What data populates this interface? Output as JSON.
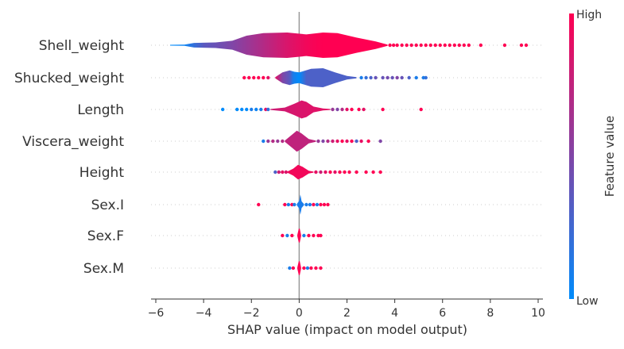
{
  "chart_data": {
    "type": "violin",
    "xlabel": "SHAP value (impact on model output)",
    "xlim": [
      -6.2,
      10.2
    ],
    "xticks": [
      -6,
      -4,
      -2,
      0,
      2,
      4,
      6,
      8,
      10
    ],
    "grid": false,
    "colorbar": {
      "label": "Feature value",
      "high_label": "High",
      "low_label": "Low",
      "low_color": "#008bfb",
      "high_color": "#ff0052"
    },
    "features": [
      {
        "name": "Shell_weight",
        "density": [
          [
            -5.4,
            0.03
          ],
          [
            -4.8,
            0.05
          ],
          [
            -4.4,
            0.18
          ],
          [
            -3.5,
            0.22
          ],
          [
            -2.8,
            0.35
          ],
          [
            -2.2,
            0.75
          ],
          [
            -1.5,
            0.95
          ],
          [
            -0.5,
            1.0
          ],
          [
            0.3,
            0.85
          ],
          [
            1.0,
            1.0
          ],
          [
            1.6,
            0.95
          ],
          [
            2.4,
            0.6
          ],
          [
            3.2,
            0.3
          ],
          [
            3.7,
            0.05
          ]
        ],
        "colors": [
          [
            -5.4,
            0.0
          ],
          [
            -4.8,
            0.05
          ],
          [
            -4.0,
            0.35
          ],
          [
            -2.8,
            0.5
          ],
          [
            -1.5,
            0.7
          ],
          [
            -0.5,
            0.85
          ],
          [
            0.3,
            0.95
          ],
          [
            1.0,
            1.0
          ],
          [
            3.7,
            1.0
          ]
        ],
        "points": [
          [
            3.8,
            1
          ],
          [
            3.95,
            1
          ],
          [
            4.1,
            1
          ],
          [
            4.3,
            1
          ],
          [
            4.5,
            1
          ],
          [
            4.7,
            1
          ],
          [
            4.9,
            1
          ],
          [
            5.1,
            1
          ],
          [
            5.3,
            1
          ],
          [
            5.5,
            1
          ],
          [
            5.7,
            1
          ],
          [
            5.9,
            1
          ],
          [
            6.1,
            1
          ],
          [
            6.3,
            1
          ],
          [
            6.5,
            1
          ],
          [
            6.7,
            1
          ],
          [
            6.9,
            1
          ],
          [
            7.1,
            1
          ],
          [
            7.6,
            1
          ],
          [
            8.6,
            1
          ],
          [
            9.3,
            1
          ],
          [
            9.5,
            1
          ]
        ]
      },
      {
        "name": "Shucked_weight",
        "density": [
          [
            -1.0,
            0.05
          ],
          [
            -0.7,
            0.45
          ],
          [
            -0.4,
            0.62
          ],
          [
            -0.2,
            0.5
          ],
          [
            0.0,
            0.45
          ],
          [
            0.5,
            0.75
          ],
          [
            1.0,
            0.8
          ],
          [
            1.5,
            0.45
          ],
          [
            2.0,
            0.15
          ],
          [
            2.4,
            0.05
          ]
        ],
        "colors": [
          [
            -1.0,
            0.9
          ],
          [
            -0.7,
            0.5
          ],
          [
            -0.4,
            0.35
          ],
          [
            -0.25,
            0.1
          ],
          [
            0.0,
            0.0
          ],
          [
            0.3,
            0.3
          ],
          [
            2.4,
            0.3
          ]
        ],
        "points": [
          [
            -2.3,
            1
          ],
          [
            -2.1,
            1
          ],
          [
            -1.9,
            1
          ],
          [
            -1.7,
            1
          ],
          [
            -1.5,
            1
          ],
          [
            -1.3,
            0.9
          ],
          [
            2.6,
            0.1
          ],
          [
            2.8,
            0.2
          ],
          [
            3.0,
            0.3
          ],
          [
            3.2,
            0.4
          ],
          [
            3.5,
            0.4
          ],
          [
            3.7,
            0.45
          ],
          [
            3.9,
            0.4
          ],
          [
            4.1,
            0.5
          ],
          [
            4.3,
            0.4
          ],
          [
            4.6,
            0.3
          ],
          [
            4.9,
            0.1
          ],
          [
            5.2,
            0.1
          ],
          [
            5.3,
            0.2
          ]
        ]
      },
      {
        "name": "Length",
        "density": [
          [
            -1.2,
            0.05
          ],
          [
            -0.6,
            0.2
          ],
          [
            -0.2,
            0.6
          ],
          [
            0.1,
            0.95
          ],
          [
            0.3,
            0.8
          ],
          [
            0.6,
            0.3
          ],
          [
            1.0,
            0.1
          ],
          [
            1.3,
            0.05
          ]
        ],
        "colors": [
          [
            -1.2,
            0.8
          ],
          [
            1.3,
            0.9
          ]
        ],
        "points": [
          [
            -3.2,
            0
          ],
          [
            -2.6,
            0
          ],
          [
            -2.4,
            0
          ],
          [
            -2.2,
            0
          ],
          [
            -2.0,
            0.1
          ],
          [
            -1.8,
            0.05
          ],
          [
            -1.6,
            0.1
          ],
          [
            -1.4,
            0.9
          ],
          [
            -1.3,
            0.2
          ],
          [
            1.4,
            0.6
          ],
          [
            1.6,
            0.5
          ],
          [
            1.8,
            0.7
          ],
          [
            2.0,
            0.9
          ],
          [
            2.2,
            1
          ],
          [
            2.5,
            1
          ],
          [
            2.7,
            0.9
          ],
          [
            3.5,
            1
          ],
          [
            5.1,
            1
          ]
        ]
      },
      {
        "name": "Viscera_weight",
        "density": [
          [
            -0.6,
            0.05
          ],
          [
            -0.35,
            0.5
          ],
          [
            -0.1,
            0.95
          ],
          [
            0.1,
            0.7
          ],
          [
            0.4,
            0.2
          ],
          [
            0.7,
            0.05
          ]
        ],
        "colors": [
          [
            -0.6,
            0.75
          ],
          [
            0.7,
            0.75
          ]
        ],
        "points": [
          [
            -1.5,
            0.1
          ],
          [
            -1.3,
            0.6
          ],
          [
            -1.1,
            0.7
          ],
          [
            -0.9,
            0.6
          ],
          [
            -0.7,
            0.7
          ],
          [
            0.8,
            0.6
          ],
          [
            1.0,
            0.5
          ],
          [
            1.2,
            0.7
          ],
          [
            1.4,
            0.8
          ],
          [
            1.6,
            0.9
          ],
          [
            1.8,
            1
          ],
          [
            2.0,
            0.9
          ],
          [
            2.2,
            1
          ],
          [
            2.4,
            0.3
          ],
          [
            2.6,
            0.9
          ],
          [
            2.9,
            1
          ],
          [
            3.4,
            0.5
          ]
        ]
      },
      {
        "name": "Height",
        "density": [
          [
            -0.5,
            0.05
          ],
          [
            -0.25,
            0.4
          ],
          [
            -0.05,
            0.85
          ],
          [
            0.15,
            0.6
          ],
          [
            0.4,
            0.15
          ],
          [
            0.6,
            0.05
          ]
        ],
        "colors": [
          [
            -0.5,
            0.95
          ],
          [
            0.6,
            0.95
          ]
        ],
        "points": [
          [
            -1.0,
            0.3
          ],
          [
            -0.85,
            0.8
          ],
          [
            -0.7,
            0.9
          ],
          [
            -0.55,
            0.85
          ],
          [
            0.7,
            0.9
          ],
          [
            0.9,
            0.8
          ],
          [
            1.1,
            0.9
          ],
          [
            1.3,
            1
          ],
          [
            1.5,
            0.9
          ],
          [
            1.7,
            1
          ],
          [
            1.9,
            1
          ],
          [
            2.1,
            1
          ],
          [
            2.4,
            1
          ],
          [
            2.8,
            1
          ],
          [
            3.1,
            1
          ],
          [
            3.4,
            1
          ]
        ]
      },
      {
        "name": "Sex.I",
        "density": [
          [
            -0.1,
            0.05
          ],
          [
            0.0,
            0.35
          ],
          [
            0.05,
            0.9
          ],
          [
            0.1,
            0.3
          ],
          [
            0.2,
            0.05
          ]
        ],
        "colors": [
          [
            -0.1,
            0.1
          ],
          [
            0.2,
            0.1
          ]
        ],
        "points": [
          [
            -1.7,
            1
          ],
          [
            -0.6,
            1
          ],
          [
            -0.45,
            0.1
          ],
          [
            -0.3,
            1
          ],
          [
            -0.2,
            0.1
          ],
          [
            0.3,
            0.1
          ],
          [
            0.45,
            0.1
          ],
          [
            0.6,
            1
          ],
          [
            0.75,
            0.1
          ],
          [
            0.9,
            1
          ],
          [
            1.05,
            1
          ],
          [
            1.2,
            1
          ]
        ]
      },
      {
        "name": "Sex.F",
        "density": [
          [
            -0.08,
            0.05
          ],
          [
            -0.02,
            0.7
          ],
          [
            0.02,
            0.75
          ],
          [
            0.08,
            0.05
          ]
        ],
        "colors": [
          [
            -0.08,
            1
          ],
          [
            0.08,
            1
          ]
        ],
        "points": [
          [
            -0.7,
            1
          ],
          [
            -0.5,
            0.1
          ],
          [
            -0.3,
            1
          ],
          [
            0.2,
            0.1
          ],
          [
            0.4,
            1
          ],
          [
            0.6,
            1
          ],
          [
            0.8,
            1
          ],
          [
            0.9,
            1
          ]
        ]
      },
      {
        "name": "Sex.M",
        "density": [
          [
            -0.08,
            0.05
          ],
          [
            -0.02,
            0.7
          ],
          [
            0.02,
            0.75
          ],
          [
            0.08,
            0.05
          ]
        ],
        "colors": [
          [
            -0.08,
            1
          ],
          [
            0.08,
            1
          ]
        ],
        "points": [
          [
            -0.4,
            0.1
          ],
          [
            -0.25,
            1
          ],
          [
            0.2,
            1
          ],
          [
            0.35,
            0.1
          ],
          [
            0.5,
            1
          ],
          [
            0.7,
            1
          ],
          [
            0.9,
            1
          ]
        ]
      }
    ]
  }
}
